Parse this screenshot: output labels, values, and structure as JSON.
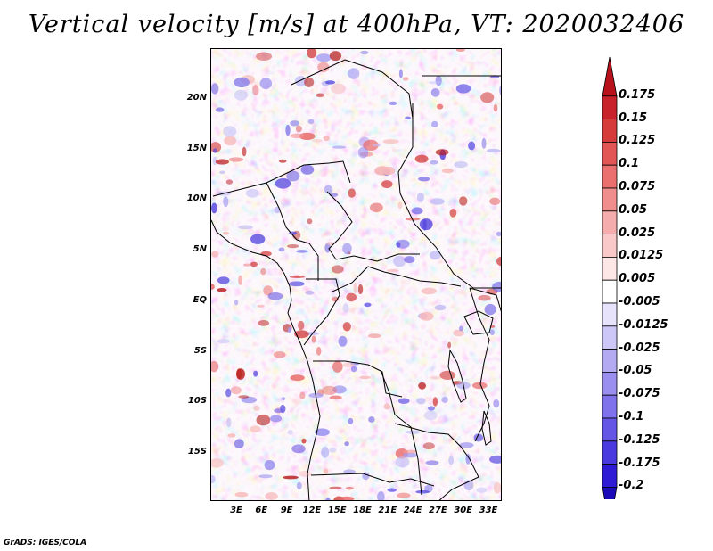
{
  "title": "Vertical velocity [m/s] at 400hPa, VT: 2020032406",
  "credit": "GrADS: IGES/COLA",
  "map": {
    "lat_labels": [
      "20N",
      "15N",
      "10N",
      "5N",
      "EQ",
      "5S",
      "10S",
      "15S"
    ],
    "lon_labels": [
      "3E",
      "6E",
      "9E",
      "12E",
      "15E",
      "18E",
      "21E",
      "24E",
      "27E",
      "30E",
      "33E"
    ]
  },
  "colorbar": {
    "labels": [
      "0.175",
      "0.15",
      "0.125",
      "0.1",
      "0.075",
      "0.05",
      "0.025",
      "0.0125",
      "0.005",
      "-0.005",
      "-0.0125",
      "-0.025",
      "-0.05",
      "-0.075",
      "-0.1",
      "-0.125",
      "-0.175",
      "-0.2"
    ],
    "colors": [
      "#b8111c",
      "#c8232c",
      "#d63b3b",
      "#e25656",
      "#ea7070",
      "#f08e8e",
      "#f5acac",
      "#f9c9c9",
      "#fde6e6",
      "#ffffff",
      "#e6e3fb",
      "#cdc7f7",
      "#b3aaf2",
      "#9a8eee",
      "#7f72ea",
      "#6556e5",
      "#4a39df",
      "#2f1bd6",
      "#1a0ab8"
    ]
  }
}
